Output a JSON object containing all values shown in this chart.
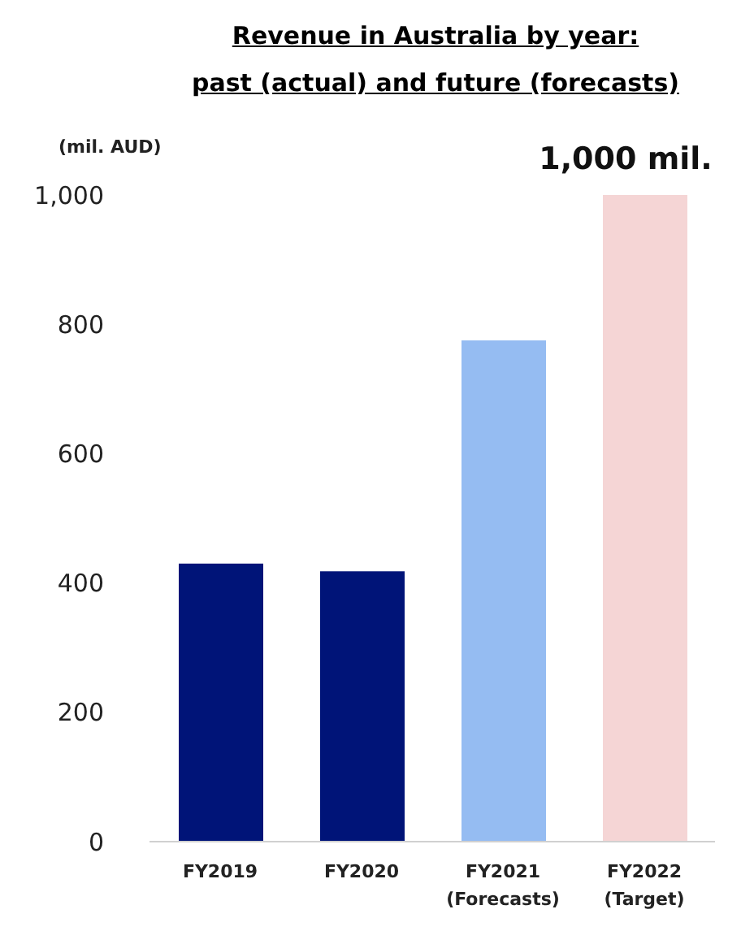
{
  "chart_data": {
    "type": "bar",
    "title": "Revenue in Australia by year:\npast (actual) and future (forecasts)",
    "ylabel": "(mil. AUD)",
    "categories": [
      "FY2019",
      "FY2020",
      "FY2021\n(Forecasts)",
      "FY2022\n(Target)"
    ],
    "values": [
      430,
      418,
      775,
      1000
    ],
    "colors": [
      "#001478",
      "#001478",
      "#95bcf2",
      "#f5d5d5"
    ],
    "ylim": [
      0,
      1000
    ],
    "yticks": [
      0,
      {
        "value": 200,
        "label": "200"
      },
      {
        "value": 400,
        "label": "400"
      },
      {
        "value": 600,
        "label": "600"
      },
      {
        "value": 800,
        "label": "800"
      },
      {
        "value": 1000,
        "label": "1,000"
      }
    ],
    "grid": false,
    "annotations": [
      {
        "text": "1,000 mil.",
        "x": "FY2022\n(Target)",
        "y": 1000
      }
    ]
  }
}
